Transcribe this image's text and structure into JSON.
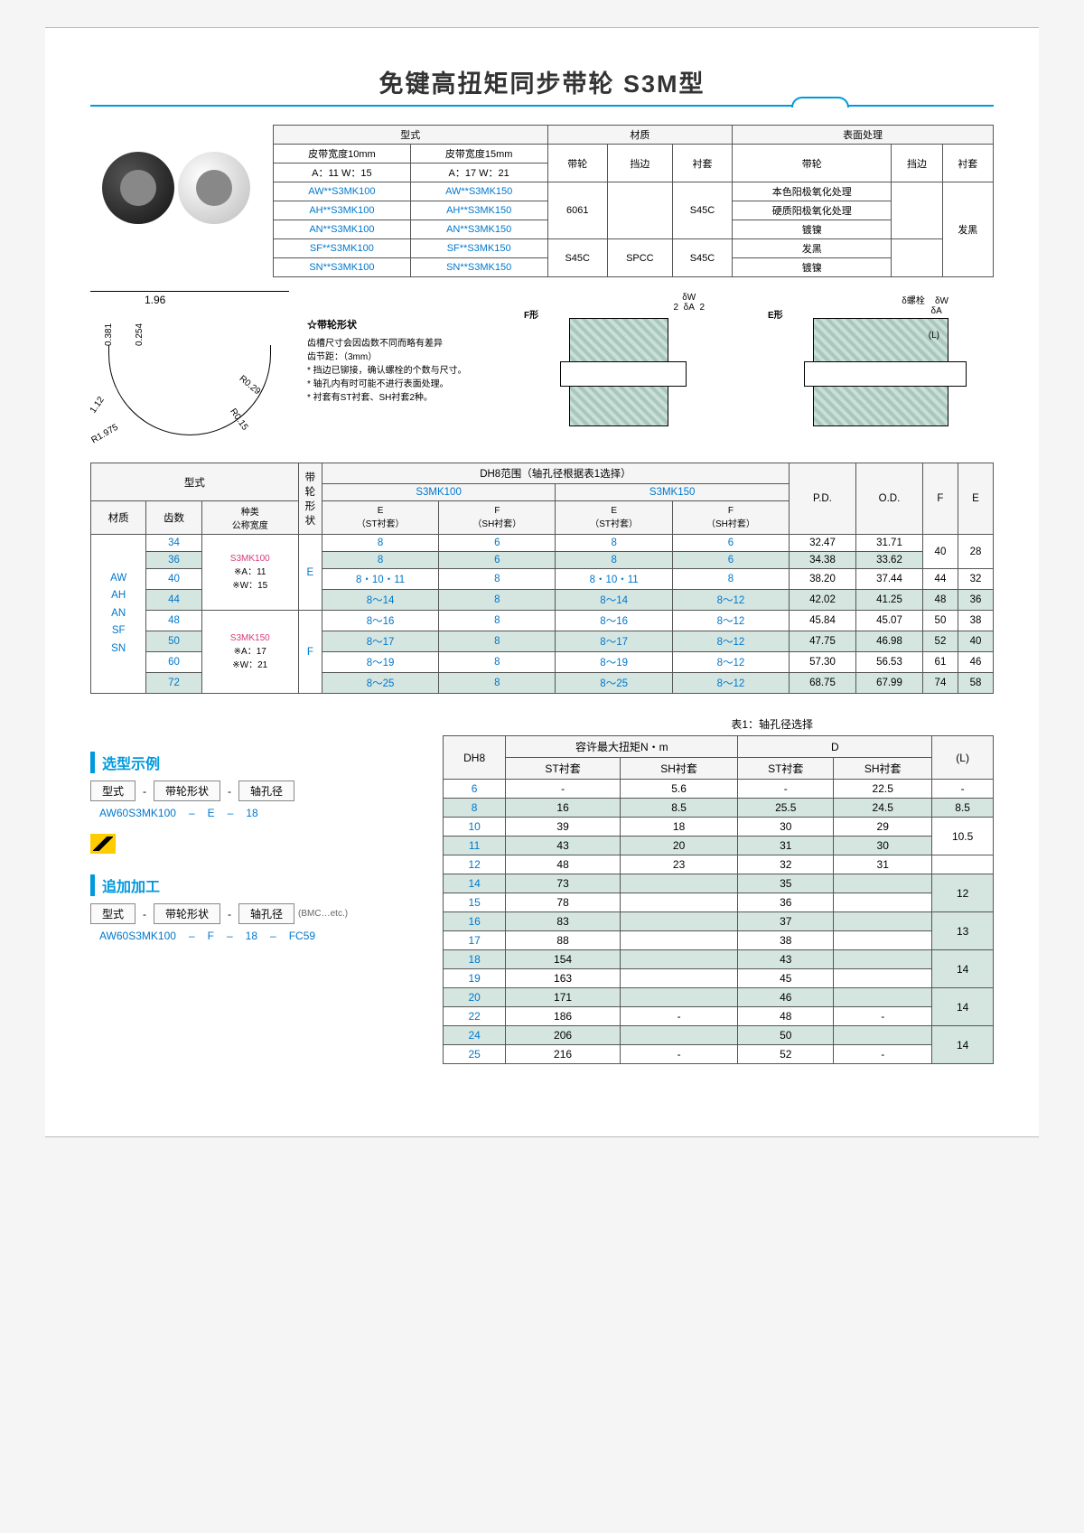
{
  "title": "免键高扭矩同步带轮 S3M型",
  "topTable": {
    "headers": [
      "型式",
      "材质",
      "表面处理"
    ],
    "sub1": {
      "c1": "皮带宽度10mm",
      "c2": "皮带宽度15mm",
      "c3": "带轮",
      "c4": "挡边",
      "c5": "衬套",
      "c6": "带轮",
      "c7": "挡边",
      "c8": "衬套"
    },
    "awRow": {
      "a11": "A：11  W：15",
      "a17": "A：17  W：21"
    },
    "models": [
      {
        "m1": "AW**S3MK100",
        "m2": "AW**S3MK150"
      },
      {
        "m1": "AH**S3MK100",
        "m2": "AH**S3MK150"
      },
      {
        "m1": "AN**S3MK100",
        "m2": "AN**S3MK150"
      },
      {
        "m1": "SF**S3MK100",
        "m2": "SF**S3MK150"
      },
      {
        "m1": "SN**S3MK100",
        "m2": "SN**S3MK150"
      }
    ],
    "mat": {
      "al": "6061",
      "s45c1": "S45C",
      "s45c2": "S45C",
      "spcc": "SPCC",
      "s45c3": "S45C"
    },
    "surf": [
      "本色阳极氧化处理",
      "硬质阳极氧化处理",
      "镀镍",
      "发黑",
      "镀镍"
    ],
    "surfBush": "发黑"
  },
  "profile": {
    "d196": "1.96",
    "d0254": "0.254",
    "d0381": "0.381",
    "d112": "1.12",
    "r1975": "R1.975",
    "r029": "R0.29",
    "r015": "R0.15"
  },
  "notes": {
    "hdr": "☆带轮形状",
    "n1": "齿槽尺寸会因齿数不同而略有差异",
    "n2": "齿节距：（3mm）",
    "n3": "* 挡边已铆接，确认螺栓的个数与尺寸。",
    "n4": "* 轴孔内有时可能不进行表面处理。",
    "n5": "* 衬套有ST衬套、SH衬套2种。"
  },
  "cutF": {
    "label": "F形",
    "dw": "δW",
    "da": "δA",
    "n2a": "2",
    "n2b": "2"
  },
  "cutE": {
    "label": "E形",
    "bolt": "δ螺栓",
    "dw": "δW",
    "da": "δA",
    "L": "(L)"
  },
  "spec": {
    "hdr": {
      "type": "型式",
      "shape": "带轮形状",
      "dh8": "DH8范围（轴孔径根据表1选择）",
      "s100": "S3MK100",
      "s150": "S3MK150",
      "pd": "P.D.",
      "od": "O.D.",
      "f": "F",
      "e": "E",
      "mat": "材质",
      "teeth": "齿数",
      "kind": "种类\n公称宽度",
      "est": "E\n（ST衬套）",
      "esh": "F\n（SH衬套）",
      "est2": "E\n（ST衬套）",
      "esh2": "F\n（SH衬套）"
    },
    "matList": "AW\nAH\nAN\nSF\nSN",
    "kind1": "S3MK100",
    "kind1b": "※A：11\n※W：15",
    "kind2": "S3MK150",
    "kind2b": "※A：17\n※W：21",
    "shapeE": "E",
    "shapeF": "F",
    "rows": [
      {
        "t": "34",
        "a": "8",
        "b": "6",
        "c": "8",
        "d": "6",
        "pd": "32.47",
        "od": "31.71",
        "f": "40",
        "e": "28",
        "alt": false
      },
      {
        "t": "36",
        "a": "8",
        "b": "6",
        "c": "8",
        "d": "6",
        "pd": "34.38",
        "od": "33.62",
        "f": "40",
        "e": "28",
        "alt": true,
        "fspan": true
      },
      {
        "t": "40",
        "a": "8・10・11",
        "b": "8",
        "c": "8・10・11",
        "d": "8",
        "pd": "38.20",
        "od": "37.44",
        "f": "44",
        "e": "32",
        "alt": false
      },
      {
        "t": "44",
        "a": "8～14",
        "b": "8",
        "c": "8～14",
        "d": "8～12",
        "pd": "42.02",
        "od": "41.25",
        "f": "48",
        "e": "36",
        "alt": true
      },
      {
        "t": "48",
        "a": "8～16",
        "b": "8",
        "c": "8～16",
        "d": "8～12",
        "pd": "45.84",
        "od": "45.07",
        "f": "50",
        "e": "38",
        "alt": false
      },
      {
        "t": "50",
        "a": "8～17",
        "b": "8",
        "c": "8～17",
        "d": "8～12",
        "pd": "47.75",
        "od": "46.98",
        "f": "52",
        "e": "40",
        "alt": true
      },
      {
        "t": "60",
        "a": "8～19",
        "b": "8",
        "c": "8～19",
        "d": "8～12",
        "pd": "57.30",
        "od": "56.53",
        "f": "61",
        "e": "46",
        "alt": false
      },
      {
        "t": "72",
        "a": "8～25",
        "b": "8",
        "c": "8～25",
        "d": "8～12",
        "pd": "68.75",
        "od": "67.99",
        "f": "74",
        "e": "58",
        "alt": true
      }
    ]
  },
  "sel": {
    "hdr1": "选型示例",
    "b1": "型式",
    "b2": "带轮形状",
    "b3": "轴孔径",
    "ex1a": "AW60S3MK100",
    "ex1b": "E",
    "ex1c": "18",
    "hdr2": "追加加工",
    "b4": "型式",
    "b5": "带轮形状",
    "b6": "轴孔径",
    "bmc": "(BMC…etc.)",
    "ex2a": "AW60S3MK100",
    "ex2b": "F",
    "ex2c": "18",
    "ex2d": "FC59"
  },
  "torque": {
    "caption": "表1：轴孔径选择",
    "hdr": {
      "dh8": "DH8",
      "tor": "容许最大扭矩N・m",
      "d": "D",
      "l": "(L)",
      "st": "ST衬套",
      "sh": "SH衬套"
    },
    "rows": [
      {
        "dh": "6",
        "ts": "-",
        "th": "5.6",
        "ds": "-",
        "dh2": "22.5",
        "l": "-",
        "alt": false
      },
      {
        "dh": "8",
        "ts": "16",
        "th": "8.5",
        "ds": "25.5",
        "dh2": "24.5",
        "l": "8.5",
        "alt": true
      },
      {
        "dh": "10",
        "ts": "39",
        "th": "18",
        "ds": "30",
        "dh2": "29",
        "l": "",
        "alt": false
      },
      {
        "dh": "11",
        "ts": "43",
        "th": "20",
        "ds": "31",
        "dh2": "30",
        "l": "10.5",
        "alt": true
      },
      {
        "dh": "12",
        "ts": "48",
        "th": "23",
        "ds": "32",
        "dh2": "31",
        "l": "",
        "alt": false
      },
      {
        "dh": "14",
        "ts": "73",
        "th": "",
        "ds": "35",
        "dh2": "",
        "l": "",
        "alt": true
      },
      {
        "dh": "15",
        "ts": "78",
        "th": "",
        "ds": "36",
        "dh2": "",
        "l": "12",
        "alt": false
      },
      {
        "dh": "16",
        "ts": "83",
        "th": "",
        "ds": "37",
        "dh2": "",
        "l": "",
        "alt": true
      },
      {
        "dh": "17",
        "ts": "88",
        "th": "",
        "ds": "38",
        "dh2": "",
        "l": "13",
        "alt": false
      },
      {
        "dh": "18",
        "ts": "154",
        "th": "",
        "ds": "43",
        "dh2": "",
        "l": "",
        "alt": true
      },
      {
        "dh": "19",
        "ts": "163",
        "th": "",
        "ds": "45",
        "dh2": "",
        "l": "14",
        "alt": false
      },
      {
        "dh": "20",
        "ts": "171",
        "th": "",
        "ds": "46",
        "dh2": "",
        "l": "",
        "alt": true
      },
      {
        "dh": "22",
        "ts": "186",
        "th": "-",
        "ds": "48",
        "dh2": "-",
        "l": "14",
        "alt": false
      },
      {
        "dh": "24",
        "ts": "206",
        "th": "",
        "ds": "50",
        "dh2": "",
        "l": "",
        "alt": true
      },
      {
        "dh": "25",
        "ts": "216",
        "th": "-",
        "ds": "52",
        "dh2": "-",
        "l": "14",
        "alt": false
      }
    ]
  },
  "colors": {
    "accent": "#0099dd",
    "link": "#0077cc",
    "altRow": "#d5e6e1",
    "pink": "#d83a7a"
  }
}
